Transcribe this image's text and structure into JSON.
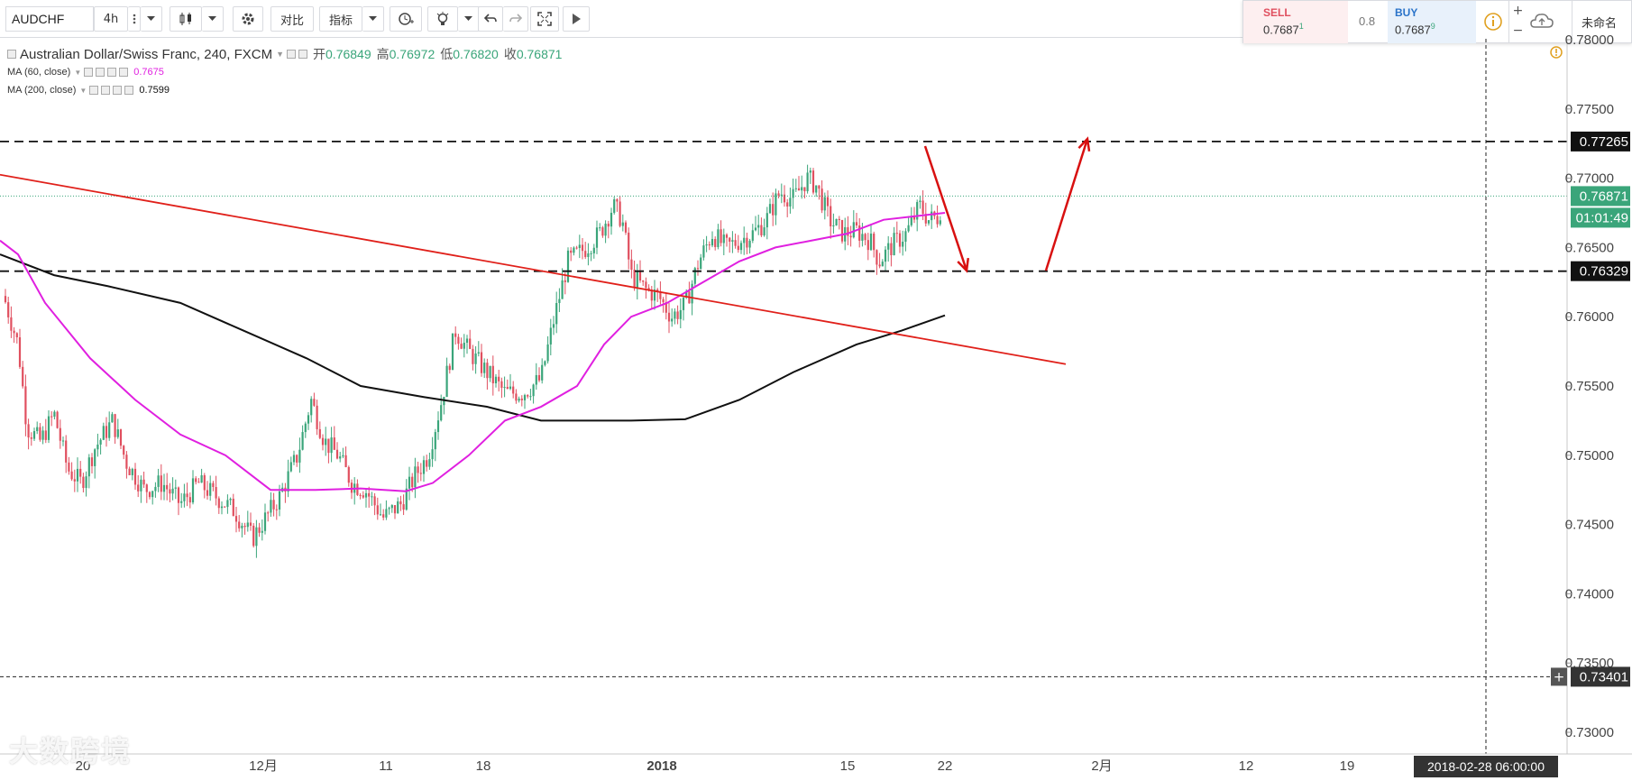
{
  "toolbar": {
    "symbol": "AUDCHF",
    "interval": "4h",
    "compare_label": "对比",
    "indicators_label": "指标"
  },
  "trade": {
    "sell_label": "SELL",
    "sell_price": "0.7687",
    "sell_sup": "1",
    "spread": "0.8",
    "buy_label": "BUY",
    "buy_price": "0.7687",
    "buy_sup": "9",
    "layout_name": "未命名"
  },
  "legend": {
    "title": "Australian Dollar/Swiss Franc, 240, FXCM",
    "open_label": "开",
    "open": "0.76849",
    "high_label": "高",
    "high": "0.76972",
    "low_label": "低",
    "low": "0.76820",
    "close_label": "收",
    "close": "0.76871",
    "ma60_label": "MA (60, close)",
    "ma60_value": "0.7675",
    "ma200_label": "MA (200, close)",
    "ma200_value": "0.7599"
  },
  "axis": {
    "price_ticks": [
      "0.78000",
      "0.77500",
      "0.77000",
      "0.76500",
      "0.76000",
      "0.75500",
      "0.75000",
      "0.74500",
      "0.74000",
      "0.73500",
      "0.73000"
    ],
    "time_ticks": [
      "20",
      "12月",
      "11",
      "18",
      "2018",
      "15",
      "22",
      "2月",
      "12",
      "19"
    ],
    "crosshair_time": "2018-02-28 06:00:00"
  },
  "markers": {
    "level_high": "0.77265",
    "last_price": "0.76871",
    "countdown": "01:01:49",
    "level_low": "0.76329",
    "crosshair_price": "0.73401"
  },
  "watermark": "大数跨境",
  "colors": {
    "up": "#3aa57a",
    "down": "#e04f5f",
    "ma60": "#e020e0",
    "ma200": "#111111",
    "trendline": "#e0201a",
    "arrow": "#d81010"
  },
  "chart_data": {
    "type": "candlestick",
    "title": "Australian Dollar/Swiss Franc, 240, FXCM",
    "ylim": [
      0.7285,
      0.7805
    ],
    "levels": [
      0.77265,
      0.76329,
      0.73401
    ],
    "ohlc_last": {
      "open": 0.76849,
      "high": 0.76972,
      "low": 0.7682,
      "close": 0.76871
    }
  }
}
